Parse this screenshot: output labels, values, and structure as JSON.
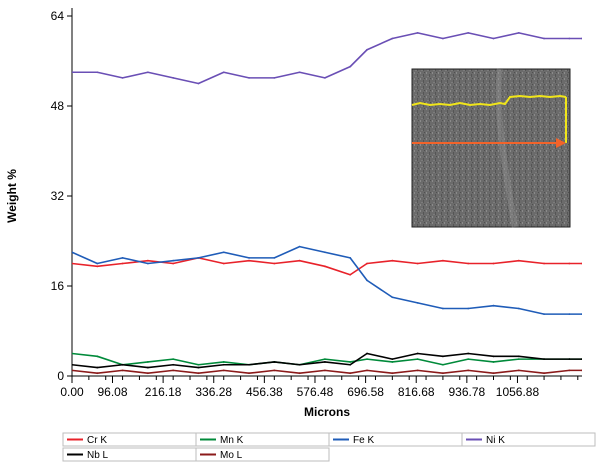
{
  "chart_data": {
    "type": "line",
    "xlabel": "Microns",
    "ylabel": "Weight %",
    "xlim": [
      0,
      1210
    ],
    "ylim": [
      0,
      64
    ],
    "y_ticks": [
      0,
      16,
      32,
      48,
      64
    ],
    "x_ticks": [
      0.0,
      96.08,
      216.18,
      336.28,
      456.38,
      576.48,
      696.58,
      816.68,
      936.78,
      1056.88
    ],
    "x_tick_labels": [
      "0.00",
      "96.08",
      "216.18",
      "336.28",
      "456.38",
      "576.48",
      "696.58",
      "816.68",
      "936.78",
      "1056.88"
    ],
    "grid": false,
    "legend_position": "bottom",
    "x": [
      0,
      60,
      120,
      180,
      240,
      300,
      360,
      420,
      480,
      540,
      600,
      660,
      700,
      760,
      820,
      880,
      940,
      1000,
      1060,
      1120,
      1180,
      1210
    ],
    "series": [
      {
        "name": "Cr K",
        "color": "#e8222a",
        "values": [
          20,
          19.5,
          20,
          20.5,
          20,
          21,
          20,
          20.5,
          20,
          20.5,
          19.5,
          18,
          20,
          20.5,
          20,
          20.5,
          20,
          20,
          20.5,
          20,
          20,
          20
        ]
      },
      {
        "name": "Mn K",
        "color": "#008a3a",
        "values": [
          4,
          3.5,
          2,
          2.5,
          3,
          2,
          2.5,
          2,
          2.5,
          2,
          3,
          2.5,
          3,
          2.5,
          3,
          2,
          3,
          2.5,
          3,
          3,
          3,
          3
        ]
      },
      {
        "name": "Fe K",
        "color": "#1f5cb8",
        "values": [
          22,
          20,
          21,
          20,
          20.5,
          21,
          22,
          21,
          21,
          23,
          22,
          21,
          17,
          14,
          13,
          12,
          12,
          12.5,
          12,
          11,
          11,
          11
        ]
      },
      {
        "name": "Ni K",
        "color": "#6a4fb5",
        "values": [
          54,
          54,
          53,
          54,
          53,
          52,
          54,
          53,
          53,
          54,
          53,
          55,
          58,
          60,
          61,
          60,
          61,
          60,
          61,
          60,
          60,
          60
        ]
      },
      {
        "name": "Nb L",
        "color": "#000000",
        "values": [
          2,
          1.5,
          2,
          1.5,
          2,
          1.5,
          2,
          2,
          2.5,
          2,
          2.5,
          2,
          4,
          3,
          4,
          3.5,
          4,
          3.5,
          3.5,
          3,
          3,
          3
        ]
      },
      {
        "name": "Mo L",
        "color": "#8b1a1a",
        "values": [
          1,
          0.5,
          1,
          0.5,
          1,
          0.5,
          1,
          0.5,
          1,
          0.5,
          1,
          0.5,
          1,
          0.5,
          1,
          0.5,
          1,
          0.5,
          1,
          0.5,
          1,
          1
        ]
      }
    ],
    "legend": [
      "Cr K",
      "Mn K",
      "Fe K",
      "Ni K",
      "Nb L",
      "Mo L"
    ],
    "inset": {
      "kind": "micrograph",
      "scan_line_colors": {
        "top": "#f0e51a",
        "bottom": "#f2632a"
      }
    }
  }
}
